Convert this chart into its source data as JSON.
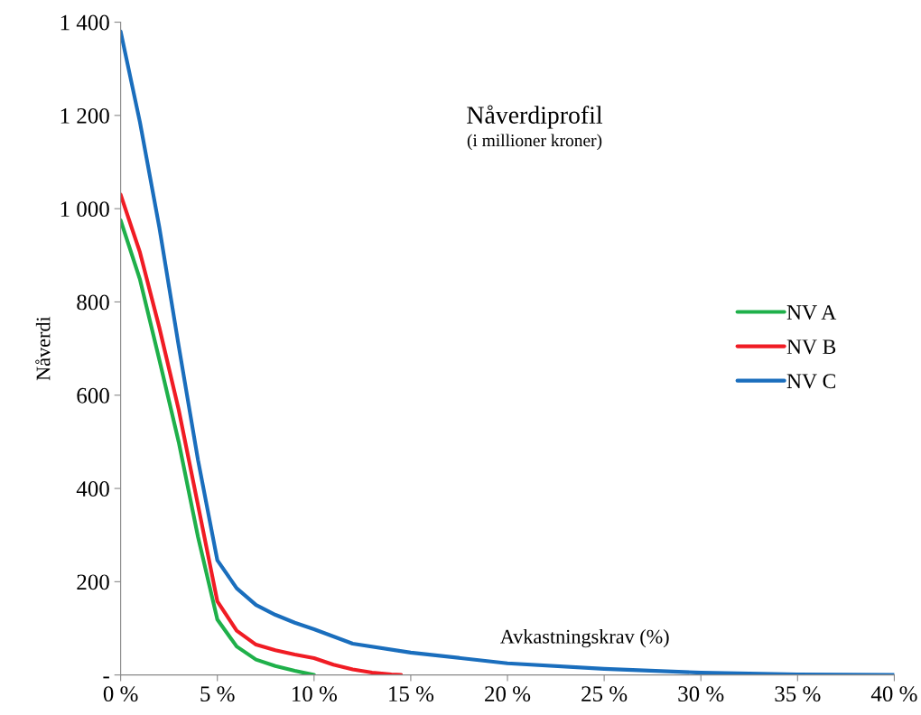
{
  "chart_data": {
    "type": "line",
    "title": "Nåverdiprofil",
    "subtitle": "(i millioner kroner)",
    "xlabel": "Avkastningskrav (%)",
    "ylabel": "Nåverdi",
    "series": [
      {
        "name": "NV A",
        "color": "#1fb04a",
        "x": [
          0,
          1,
          2,
          3,
          4,
          5,
          6,
          7,
          8,
          9,
          10
        ],
        "values": [
          975,
          848,
          676,
          500,
          296,
          119,
          61,
          33,
          19,
          9,
          0
        ]
      },
      {
        "name": "NV B",
        "color": "#f01c24",
        "x": [
          0,
          1,
          2,
          3,
          4,
          5,
          6,
          7,
          8,
          9,
          10,
          11,
          12,
          13,
          14,
          14.5
        ],
        "values": [
          1030,
          906,
          745,
          569,
          364,
          158,
          95,
          65,
          53,
          44,
          36,
          22,
          12,
          5,
          1,
          0
        ]
      },
      {
        "name": "NV C",
        "color": "#1a6ebd",
        "x": [
          0,
          1,
          2,
          3,
          4,
          5,
          6,
          7,
          8,
          9,
          10,
          12,
          15,
          20,
          25,
          30,
          35,
          40
        ],
        "values": [
          1380,
          1185,
          960,
          706,
          461,
          246,
          186,
          150,
          129,
          112,
          98,
          67,
          48,
          25,
          13,
          5,
          1,
          0
        ]
      }
    ],
    "xlim": [
      0,
      40
    ],
    "xticks": [
      {
        "value": 0,
        "label": "0 %"
      },
      {
        "value": 5,
        "label": "5 %"
      },
      {
        "value": 10,
        "label": "10 %"
      },
      {
        "value": 15,
        "label": "15 %"
      },
      {
        "value": 20,
        "label": "20 %"
      },
      {
        "value": 25,
        "label": "25 %"
      },
      {
        "value": 30,
        "label": "30 %"
      },
      {
        "value": 35,
        "label": "35 %"
      },
      {
        "value": 40,
        "label": "40 %"
      }
    ],
    "ylim": [
      0,
      1400
    ],
    "yticks": [
      {
        "value": 0,
        "label": "-"
      },
      200,
      400,
      600,
      800,
      {
        "value": 1000,
        "label": "1 000"
      },
      {
        "value": 1200,
        "label": "1 200"
      },
      {
        "value": 1400,
        "label": "1 400"
      }
    ],
    "grid": false,
    "legend": "right",
    "line_style": "solid"
  }
}
